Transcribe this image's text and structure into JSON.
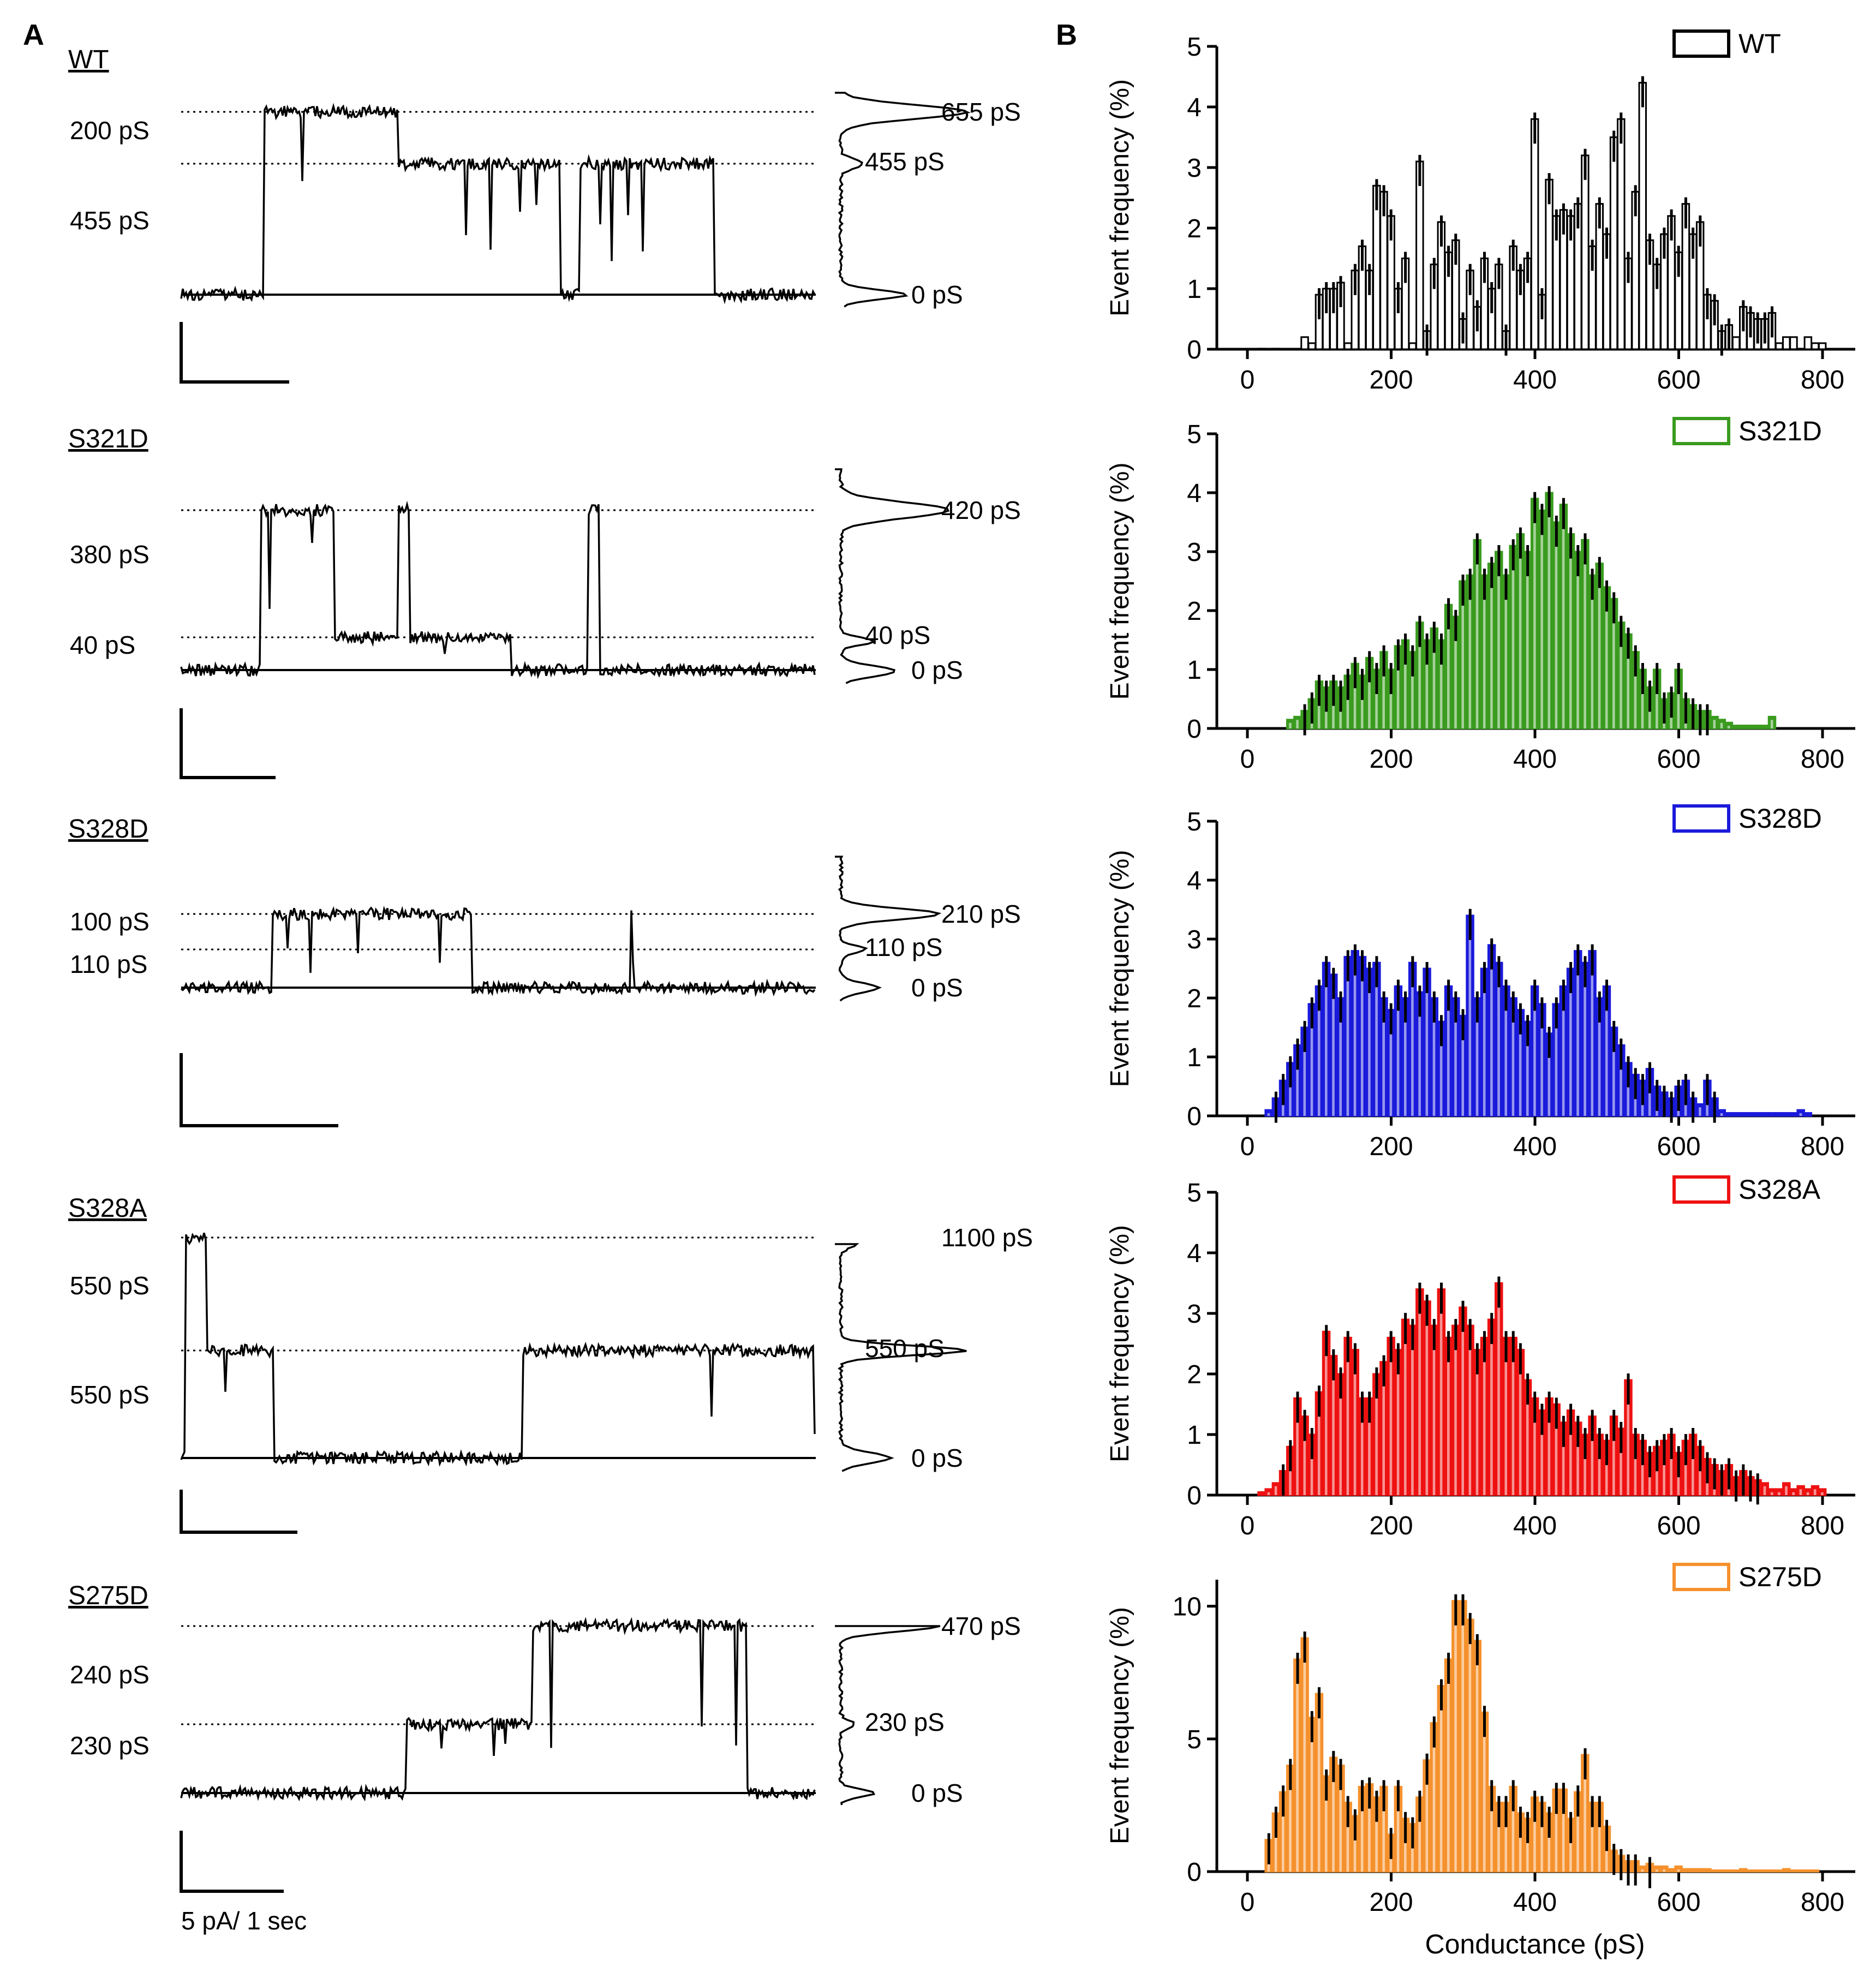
{
  "panel_labels": {
    "a": "A",
    "b": "B"
  },
  "scale_bar_label": "5 pA/ 1 sec",
  "traces": [
    {
      "name": "WT",
      "step_labels": [
        "200 pS",
        "455 pS"
      ],
      "hist_labels": [
        "655 pS",
        "455 pS",
        "0 pS"
      ]
    },
    {
      "name": "S321D",
      "step_labels": [
        "380 pS",
        "40 pS"
      ],
      "hist_labels": [
        "420 pS",
        "40 pS",
        "0 pS"
      ]
    },
    {
      "name": "S328D",
      "step_labels": [
        "100 pS",
        "110 pS"
      ],
      "hist_labels": [
        "210 pS",
        "110 pS",
        "0 pS"
      ]
    },
    {
      "name": "S328A",
      "step_labels": [
        "550 pS",
        "550 pS"
      ],
      "hist_labels": [
        "1100 pS",
        "550 pS",
        "0 pS"
      ]
    },
    {
      "name": "S275D",
      "step_labels": [
        "240 pS",
        "230 pS"
      ],
      "hist_labels": [
        "470 pS",
        "230 pS",
        "0 pS"
      ]
    }
  ],
  "chart_data": [
    {
      "type": "bar",
      "title": "",
      "legend": "WT",
      "color": "#000000",
      "xlabel": "",
      "ylabel": "Event frequency (%)",
      "xlim": [
        0,
        800
      ],
      "ylim": [
        0,
        5
      ],
      "xticks": [
        "0",
        "200",
        "400",
        "600",
        "800"
      ],
      "yticks": [
        "0",
        "1",
        "2",
        "3",
        "4",
        "5"
      ],
      "x": [
        0,
        10,
        20,
        30,
        40,
        50,
        60,
        70,
        80,
        90,
        100,
        110,
        120,
        130,
        140,
        150,
        160,
        170,
        180,
        190,
        200,
        210,
        220,
        230,
        240,
        250,
        260,
        270,
        280,
        290,
        300,
        310,
        320,
        330,
        340,
        350,
        360,
        370,
        380,
        390,
        400,
        410,
        420,
        430,
        440,
        450,
        460,
        470,
        480,
        490,
        500,
        510,
        520,
        530,
        540,
        550,
        560,
        570,
        580,
        590,
        600,
        610,
        620,
        630,
        640,
        650,
        660,
        670,
        680,
        690,
        700,
        710,
        720,
        730,
        740,
        750,
        760,
        770,
        780,
        790,
        800
      ],
      "values": [
        0,
        0,
        0.01,
        0,
        0.01,
        0,
        0,
        0,
        0.2,
        0.1,
        0.9,
        1.0,
        1.0,
        1.1,
        0.1,
        1.3,
        1.7,
        1.3,
        2.7,
        2.6,
        2.2,
        1.0,
        1.5,
        0.1,
        3.1,
        0.3,
        1.4,
        2.1,
        1.6,
        1.8,
        0.5,
        1.3,
        0.7,
        1.5,
        1.0,
        1.4,
        0.3,
        1.7,
        1.3,
        1.5,
        3.8,
        0.9,
        2.8,
        2.2,
        2.3,
        2.2,
        2.4,
        3.2,
        1.7,
        2.4,
        1.9,
        3.5,
        3.8,
        1.5,
        2.6,
        4.4,
        1.8,
        1.4,
        1.9,
        2.2,
        1.6,
        2.4,
        1.9,
        2.1,
        0.9,
        0.8,
        0.3,
        0.4,
        0.2,
        0.7,
        0.6,
        0.5,
        0.5,
        0.6,
        0.1,
        0.2,
        0.2,
        0,
        0.2,
        0.1,
        0.1
      ]
    },
    {
      "type": "bar",
      "title": "",
      "legend": "S321D",
      "color": "#3a9b1f",
      "xlabel": "",
      "ylabel": "Event frequency (%)",
      "xlim": [
        0,
        800
      ],
      "ylim": [
        0,
        5
      ],
      "xticks": [
        "0",
        "200",
        "400",
        "600",
        "800"
      ],
      "yticks": [
        "0",
        "1",
        "2",
        "3",
        "4",
        "5"
      ],
      "x": [
        0,
        10,
        20,
        30,
        40,
        50,
        60,
        70,
        80,
        90,
        100,
        110,
        120,
        130,
        140,
        150,
        160,
        170,
        180,
        190,
        200,
        210,
        220,
        230,
        240,
        250,
        260,
        270,
        280,
        290,
        300,
        310,
        320,
        330,
        340,
        350,
        360,
        370,
        380,
        390,
        400,
        410,
        420,
        430,
        440,
        450,
        460,
        470,
        480,
        490,
        500,
        510,
        520,
        530,
        540,
        550,
        560,
        570,
        580,
        590,
        600,
        610,
        620,
        630,
        640,
        650,
        660,
        670,
        680,
        690,
        700,
        710,
        720,
        730,
        740,
        750
      ],
      "values": [
        0,
        0,
        0,
        0,
        0,
        0,
        0.15,
        0.2,
        0.3,
        0.5,
        0.8,
        0.7,
        0.8,
        0.7,
        0.9,
        1.1,
        0.9,
        1.2,
        1.0,
        1.3,
        1.0,
        1.4,
        1.5,
        1.3,
        1.8,
        1.5,
        1.7,
        1.5,
        2.1,
        1.9,
        2.5,
        2.6,
        3.2,
        2.6,
        2.8,
        3.0,
        2.6,
        3.1,
        3.3,
        3.0,
        3.9,
        3.7,
        4.0,
        3.5,
        3.8,
        3.3,
        3.0,
        3.2,
        2.6,
        2.8,
        2.4,
        2.2,
        1.8,
        1.6,
        1.3,
        1.0,
        0.7,
        1.0,
        0.5,
        0.6,
        1.0,
        0.5,
        0.4,
        0.3,
        0.3,
        0.2,
        0.15,
        0.1,
        0.05,
        0.05,
        0.05,
        0.05,
        0.05,
        0.2,
        0,
        0
      ]
    },
    {
      "type": "bar",
      "title": "",
      "legend": "S328D",
      "color": "#1a1adb",
      "xlabel": "",
      "ylabel": "Event frequency (%)",
      "xlim": [
        0,
        800
      ],
      "ylim": [
        0,
        5
      ],
      "xticks": [
        "0",
        "200",
        "400",
        "600",
        "800"
      ],
      "yticks": [
        "0",
        "1",
        "2",
        "3",
        "4",
        "5"
      ],
      "x": [
        0,
        10,
        20,
        30,
        40,
        50,
        60,
        70,
        80,
        90,
        100,
        110,
        120,
        130,
        140,
        150,
        160,
        170,
        180,
        190,
        200,
        210,
        220,
        230,
        240,
        250,
        260,
        270,
        280,
        290,
        300,
        310,
        320,
        330,
        340,
        350,
        360,
        370,
        380,
        390,
        400,
        410,
        420,
        430,
        440,
        450,
        460,
        470,
        480,
        490,
        500,
        510,
        520,
        530,
        540,
        550,
        560,
        570,
        580,
        590,
        600,
        610,
        620,
        630,
        640,
        650,
        660,
        670,
        680,
        690,
        700,
        710,
        720,
        730,
        740,
        750,
        760,
        770,
        780,
        790,
        800
      ],
      "values": [
        0,
        0,
        0,
        0.1,
        0.3,
        0.6,
        0.9,
        1.2,
        1.5,
        1.9,
        2.2,
        2.6,
        2.4,
        2.0,
        2.7,
        2.8,
        2.7,
        2.5,
        2.6,
        2.0,
        1.8,
        2.2,
        2.0,
        2.6,
        2.1,
        2.5,
        2.0,
        1.6,
        2.2,
        2.0,
        1.7,
        3.4,
        2.0,
        2.5,
        2.9,
        2.6,
        2.2,
        2.0,
        1.8,
        1.6,
        2.2,
        1.9,
        1.4,
        1.9,
        2.2,
        2.5,
        2.8,
        2.6,
        2.8,
        2.0,
        2.2,
        1.5,
        1.2,
        0.9,
        0.7,
        0.6,
        0.8,
        0.5,
        0.4,
        0.3,
        0.5,
        0.6,
        0.3,
        0.2,
        0.6,
        0.3,
        0.1,
        0.05,
        0.05,
        0.05,
        0.05,
        0.05,
        0.05,
        0.05,
        0.05,
        0.05,
        0.05,
        0.1,
        0.05,
        0,
        0
      ]
    },
    {
      "type": "bar",
      "title": "",
      "legend": "S328A",
      "color": "#ee1111",
      "xlabel": "",
      "ylabel": "Event frequency (%)",
      "xlim": [
        0,
        800
      ],
      "ylim": [
        0,
        5
      ],
      "xticks": [
        "0",
        "200",
        "400",
        "600",
        "800"
      ],
      "yticks": [
        "0",
        "1",
        "2",
        "3",
        "4",
        "5"
      ],
      "x": [
        0,
        10,
        20,
        30,
        40,
        50,
        60,
        70,
        80,
        90,
        100,
        110,
        120,
        130,
        140,
        150,
        160,
        170,
        180,
        190,
        200,
        210,
        220,
        230,
        240,
        250,
        260,
        270,
        280,
        290,
        300,
        310,
        320,
        330,
        340,
        350,
        360,
        370,
        380,
        390,
        400,
        410,
        420,
        430,
        440,
        450,
        460,
        470,
        480,
        490,
        500,
        510,
        520,
        530,
        540,
        550,
        560,
        570,
        580,
        590,
        600,
        610,
        620,
        630,
        640,
        650,
        660,
        670,
        680,
        690,
        700,
        710,
        720,
        730,
        740,
        750,
        760,
        770,
        780,
        790,
        800
      ],
      "values": [
        0,
        0,
        0.05,
        0.1,
        0.2,
        0.4,
        0.8,
        1.6,
        1.3,
        1.0,
        1.7,
        2.7,
        2.3,
        2.0,
        2.6,
        2.4,
        1.6,
        1.6,
        2.0,
        2.2,
        2.6,
        2.4,
        2.9,
        2.8,
        3.4,
        3.2,
        2.8,
        3.4,
        2.6,
        2.8,
        3.1,
        2.8,
        2.4,
        2.6,
        2.9,
        3.5,
        2.6,
        2.6,
        2.4,
        1.9,
        1.6,
        1.4,
        1.6,
        1.5,
        1.2,
        1.4,
        1.2,
        1.0,
        1.3,
        1.0,
        0.9,
        1.3,
        1.1,
        1.9,
        1.0,
        0.9,
        0.7,
        0.8,
        0.9,
        1.0,
        0.7,
        0.9,
        1.0,
        0.8,
        0.6,
        0.5,
        0.4,
        0.5,
        0.3,
        0.4,
        0.3,
        0.25,
        0.2,
        0.1,
        0.1,
        0.2,
        0.1,
        0.15,
        0.1,
        0.15,
        0.1
      ]
    },
    {
      "type": "bar",
      "title": "",
      "legend": "S275D",
      "color": "#f5912d",
      "xlabel": "Conductance (pS)",
      "ylabel": "Event frequency (%)",
      "xlim": [
        0,
        800
      ],
      "ylim": [
        0,
        11
      ],
      "xticks": [
        "0",
        "200",
        "400",
        "600",
        "800"
      ],
      "yticks": [
        "0",
        "5",
        "10"
      ],
      "x": [
        0,
        10,
        20,
        30,
        40,
        50,
        60,
        70,
        80,
        90,
        100,
        110,
        120,
        130,
        140,
        150,
        160,
        170,
        180,
        190,
        200,
        210,
        220,
        230,
        240,
        250,
        260,
        270,
        280,
        290,
        300,
        310,
        320,
        330,
        340,
        350,
        360,
        370,
        380,
        390,
        400,
        410,
        420,
        430,
        440,
        450,
        460,
        470,
        480,
        490,
        500,
        510,
        520,
        530,
        540,
        550,
        560,
        570,
        580,
        590,
        600,
        610,
        620,
        630,
        640,
        650,
        660,
        670,
        680,
        690,
        700,
        710,
        720,
        730,
        740,
        750,
        760,
        770,
        780,
        790,
        800
      ],
      "values": [
        0,
        0,
        0,
        1.2,
        2.2,
        3.0,
        4.0,
        8.0,
        8.8,
        5.8,
        6.7,
        3.6,
        4.3,
        4.0,
        2.6,
        2.1,
        3.2,
        3.3,
        2.8,
        3.2,
        1.4,
        3.2,
        2.0,
        1.8,
        2.8,
        4.2,
        5.6,
        7.0,
        8.0,
        10.2,
        10.2,
        9.5,
        8.7,
        6.0,
        3.2,
        2.6,
        2.6,
        3.2,
        2.2,
        2.0,
        2.8,
        2.6,
        2.2,
        3.1,
        3.1,
        2.0,
        3.0,
        4.4,
        2.6,
        2.6,
        1.7,
        0.8,
        0.6,
        0.4,
        0.4,
        0.2,
        0.3,
        0.2,
        0.2,
        0.1,
        0.2,
        0.1,
        0.1,
        0.1,
        0.1,
        0.05,
        0.05,
        0.05,
        0.05,
        0.1,
        0.05,
        0.05,
        0.05,
        0.05,
        0.05,
        0.1,
        0.05,
        0.05,
        0.05,
        0.05,
        0
      ]
    }
  ]
}
